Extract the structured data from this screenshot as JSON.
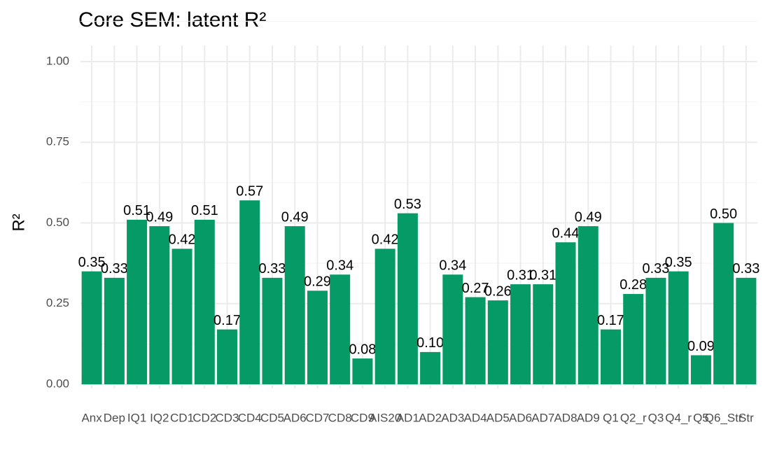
{
  "chart_data": {
    "type": "bar",
    "title": "Core SEM: latent R²",
    "y_label": "R²",
    "categories": [
      "Anx",
      "Dep",
      "IQ1",
      "IQ2",
      "CD1",
      "CD2",
      "CD3",
      "CD4",
      "CD5",
      "AD6",
      "CD7",
      "CD8",
      "CD9",
      "AIS20",
      "AD1",
      "AD2",
      "AD3",
      "AD4",
      "AD5",
      "AD6",
      "AD7",
      "AD8",
      "AD9",
      "Q1",
      "Q2_r",
      "Q3",
      "Q4_r",
      "Q5",
      "Q6_Str",
      "Str"
    ],
    "values": [
      0.35,
      0.33,
      0.51,
      0.49,
      0.42,
      0.51,
      0.17,
      0.57,
      0.33,
      0.49,
      0.29,
      0.34,
      0.08,
      0.42,
      0.53,
      0.1,
      0.34,
      0.27,
      0.26,
      0.31,
      0.31,
      0.44,
      0.49,
      0.17,
      0.28,
      0.33,
      0.35,
      0.09,
      0.5,
      0.33
    ],
    "value_labels": [
      "0.35",
      "0.33",
      "0.51",
      "0.49",
      "0.42",
      "0.51",
      "0.17",
      "0.57",
      "0.33",
      "0.49",
      "0.29",
      "0.34",
      "0.08",
      "0.42",
      "0.53",
      "0.10",
      "0.34",
      "0.27",
      "0.26",
      "0.31",
      "0.31",
      "0.44",
      "0.49",
      "0.17",
      "0.28",
      "0.33",
      "0.35",
      "0.09",
      "0.50",
      "0.33"
    ],
    "color": "#069a66",
    "ylim": [
      0,
      1
    ],
    "yticks": [
      {
        "value": 0,
        "label": "0.00"
      },
      {
        "value": 0.25,
        "label": "0.25"
      },
      {
        "value": 0.5,
        "label": "0.50"
      },
      {
        "value": 0.75,
        "label": "0.75"
      },
      {
        "value": 1,
        "label": "1.00"
      }
    ],
    "grid": true
  }
}
